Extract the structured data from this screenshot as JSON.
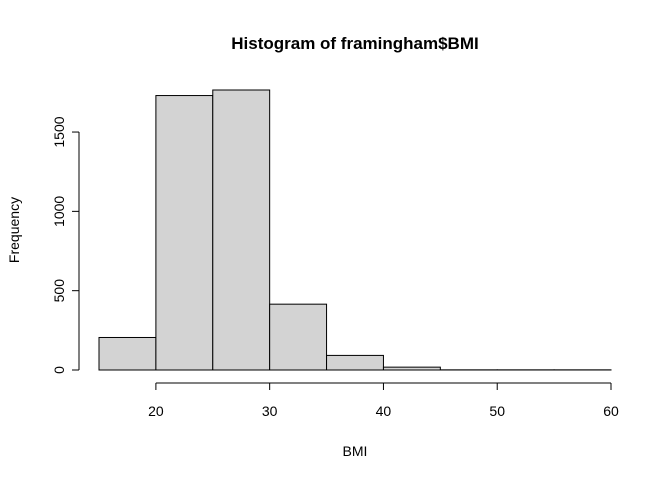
{
  "chart_data": {
    "type": "bar",
    "subtype": "histogram",
    "title": "Histogram of framingham$BMI",
    "xlabel": "BMI",
    "ylabel": "Frequency",
    "bins": [
      {
        "start": 15,
        "end": 20,
        "count": 205
      },
      {
        "start": 20,
        "end": 25,
        "count": 1730
      },
      {
        "start": 25,
        "end": 30,
        "count": 1765
      },
      {
        "start": 30,
        "end": 35,
        "count": 415
      },
      {
        "start": 35,
        "end": 40,
        "count": 92
      },
      {
        "start": 40,
        "end": 45,
        "count": 18
      },
      {
        "start": 45,
        "end": 50,
        "count": 1
      },
      {
        "start": 50,
        "end": 55,
        "count": 1
      },
      {
        "start": 55,
        "end": 60,
        "count": 1
      }
    ],
    "xticks": [
      20,
      30,
      40,
      50,
      60
    ],
    "yticks": [
      0,
      500,
      1000,
      1500
    ],
    "xlim": [
      15,
      60
    ],
    "ylim": [
      0,
      1765
    ],
    "bar_fill": "#d3d3d3",
    "bar_stroke": "#000000",
    "grid": false,
    "legend": "none"
  }
}
